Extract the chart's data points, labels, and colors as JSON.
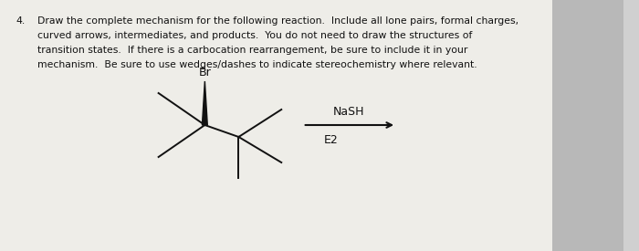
{
  "title_number": "4.",
  "title_text": "Draw the complete mechanism for the following reaction.  Include all lone pairs, formal charges,",
  "line2": "curved arrows, intermediates, and products.  You do not need to draw the structures of",
  "line3": "transition states.  If there is a carbocation rearrangement, be sure to include it in your",
  "line4": "mechanism.  Be sure to use wedges/dashes to indicate stereochemistry where relevant.",
  "reagent_top": "NaSH",
  "reagent_bottom": "E2",
  "br_label": "Br",
  "bg_color": "#d0d0d0",
  "paper_color": "#eeede8",
  "right_edge_color": "#b8b8b8",
  "text_color": "#111111",
  "mol_color": "#111111"
}
